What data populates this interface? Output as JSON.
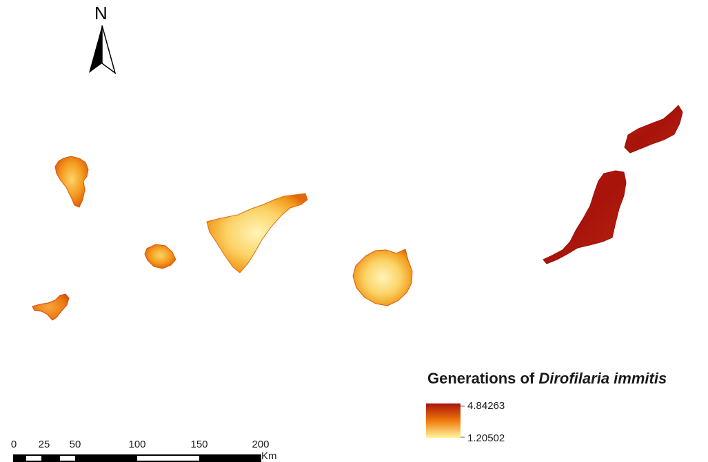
{
  "north_arrow": {
    "label": "N",
    "icon": "north-arrow-icon"
  },
  "legend": {
    "title_prefix": "Generations of ",
    "title_species": "Dirofilaria immitis",
    "max_label": "4.84263",
    "min_label": "1.20502",
    "color_high": "#a8130a",
    "color_mid": "#f0790c",
    "color_low": "#fff7a0"
  },
  "scale_bar": {
    "tick_labels": [
      "0",
      "25",
      "50",
      "100",
      "150",
      "200"
    ],
    "unit": "Km"
  },
  "islands": [
    {
      "name": "La Palma",
      "level": "medium-low"
    },
    {
      "name": "El Hierro",
      "level": "medium"
    },
    {
      "name": "La Gomera",
      "level": "medium-low"
    },
    {
      "name": "Tenerife",
      "level": "low"
    },
    {
      "name": "Gran Canaria",
      "level": "medium-low"
    },
    {
      "name": "Fuerteventura",
      "level": "high"
    },
    {
      "name": "Lanzarote",
      "level": "high"
    }
  ]
}
